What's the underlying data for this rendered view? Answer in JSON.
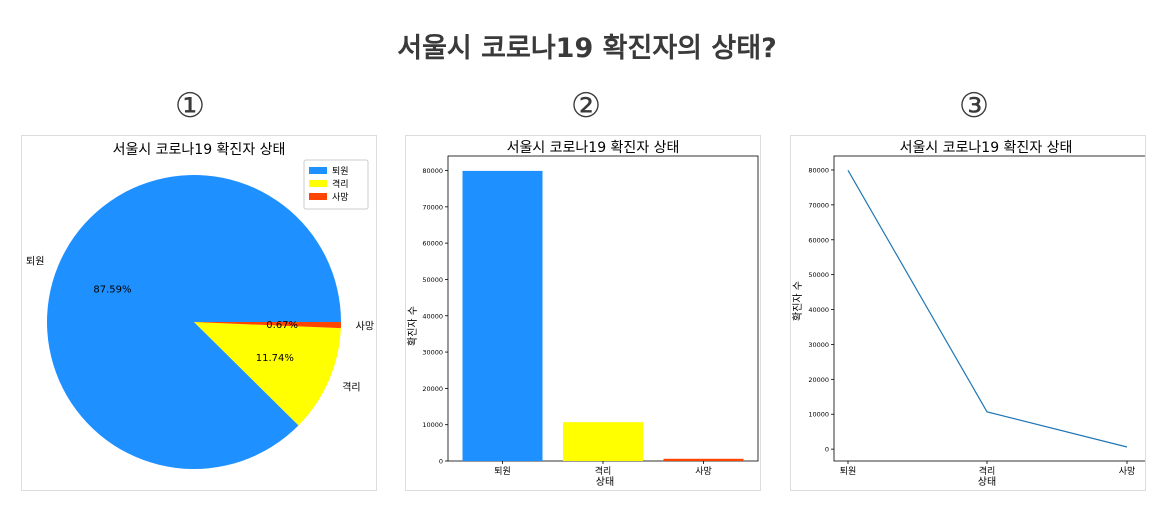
{
  "page": {
    "title": "서울시 코로나19 확진자의 상태?",
    "numbers": [
      "①",
      "②",
      "③"
    ]
  },
  "colors": {
    "discharged": "#1e90ff",
    "isolated": "#ffff00",
    "death": "#ff4500",
    "line": "#1f77b4"
  },
  "chart_data": [
    {
      "type": "pie",
      "title": "서울시 코로나19 확진자 상태",
      "categories": [
        "퇴원",
        "격리",
        "사망"
      ],
      "values": [
        87.59,
        11.74,
        0.67
      ],
      "value_labels": [
        "87.59%",
        "11.74%",
        "0.67%"
      ],
      "legend": {
        "position": "top-right",
        "entries": [
          "퇴원",
          "격리",
          "사망"
        ]
      }
    },
    {
      "type": "bar",
      "title": "서울시 코로나19 확진자 상태",
      "categories": [
        "퇴원",
        "격리",
        "사망"
      ],
      "values": [
        79900,
        10700,
        610
      ],
      "xlabel": "상태",
      "ylabel": "확진자 수",
      "ylim": [
        0,
        84000
      ],
      "yticks": [
        0,
        10000,
        20000,
        30000,
        40000,
        50000,
        60000,
        70000,
        80000
      ]
    },
    {
      "type": "line",
      "title": "서울시 코로나19 확진자 상태",
      "categories": [
        "퇴원",
        "격리",
        "사망"
      ],
      "values": [
        79900,
        10700,
        610
      ],
      "xlabel": "상태",
      "ylabel": "확진자 수",
      "ylim": [
        -3400,
        84000
      ],
      "yticks": [
        0,
        10000,
        20000,
        30000,
        40000,
        50000,
        60000,
        70000,
        80000
      ]
    }
  ]
}
